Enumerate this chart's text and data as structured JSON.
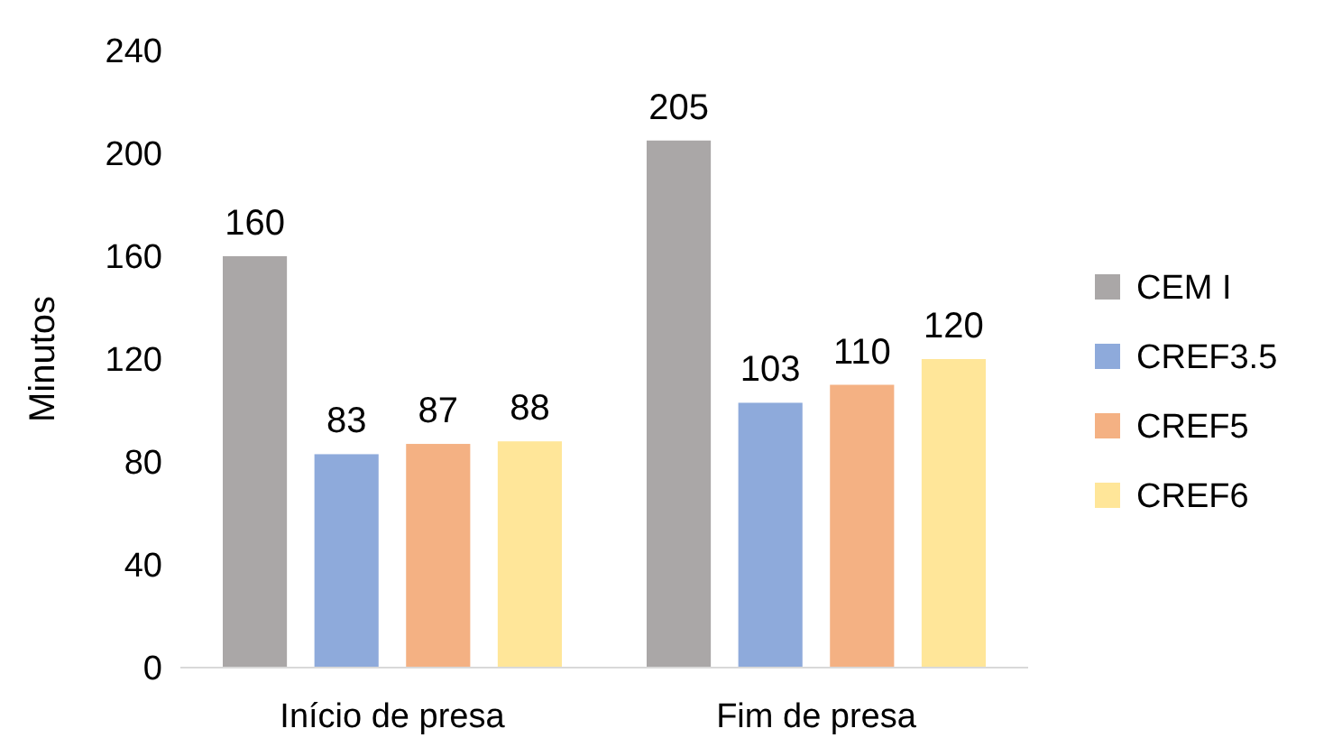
{
  "chart_data": {
    "type": "bar",
    "ylabel": "Minutos",
    "categories": [
      "Início de presa",
      "Fim de presa"
    ],
    "series": [
      {
        "name": "CEM I",
        "color": "#aaa7a7",
        "values": [
          160,
          205
        ]
      },
      {
        "name": "CREF3.5",
        "color": "#8eaadb",
        "values": [
          83,
          103
        ]
      },
      {
        "name": "CREF5",
        "color": "#f4b183",
        "values": [
          87,
          110
        ]
      },
      {
        "name": "CREF6",
        "color": "#ffe699",
        "values": [
          88,
          120
        ]
      }
    ],
    "ylim": [
      0,
      240
    ],
    "yticks": [
      0,
      40,
      80,
      120,
      160,
      200,
      240
    ],
    "grid": false,
    "legend": "right",
    "data_labels": true
  }
}
